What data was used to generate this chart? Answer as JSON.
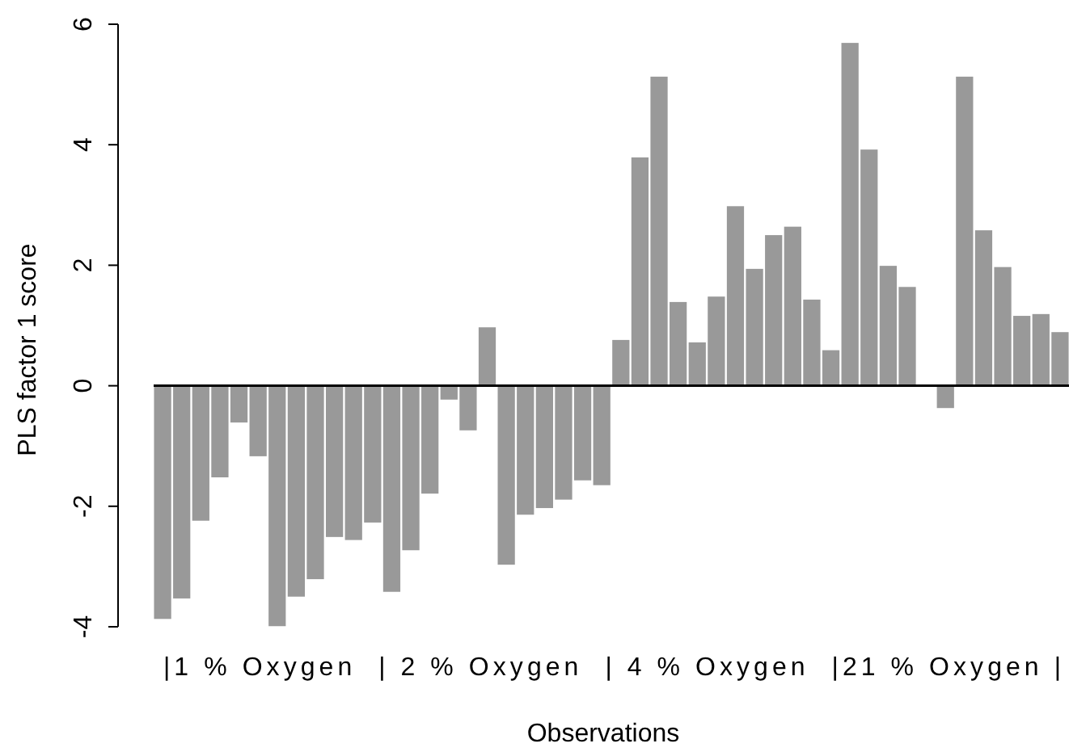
{
  "chart_data": {
    "type": "bar",
    "xlabel": "Observations",
    "ylabel": "PLS factor 1 score",
    "annotations": [
      "|1 % Oxygen  | 2 % Oxygen  | 4 % Oxygen  |21 % Oxygen |"
    ],
    "categories": [
      null,
      null,
      null,
      null,
      null,
      null,
      null,
      null,
      null,
      null,
      null,
      null,
      null,
      null,
      null,
      null,
      null,
      null,
      null,
      null,
      null,
      null,
      null,
      null,
      null,
      null,
      null,
      null,
      null,
      null,
      null,
      null,
      null,
      null,
      null,
      null,
      null,
      null,
      null,
      null,
      null,
      null,
      null,
      null,
      null,
      null,
      null,
      null
    ],
    "values": [
      -3.87,
      -3.53,
      -2.24,
      -1.52,
      -0.61,
      -1.17,
      -3.99,
      -3.5,
      -3.21,
      -2.51,
      -2.56,
      -2.27,
      -3.42,
      -2.73,
      -1.79,
      -0.23,
      -0.74,
      0.97,
      -2.97,
      -2.14,
      -2.03,
      -1.89,
      -1.57,
      -1.65,
      0.76,
      3.79,
      5.13,
      1.39,
      0.72,
      1.48,
      2.98,
      1.94,
      2.5,
      2.64,
      1.43,
      0.59,
      5.69,
      3.92,
      1.99,
      1.64,
      0,
      -0.37,
      5.13,
      2.58,
      1.97,
      1.16,
      1.19,
      0.89
    ],
    "color": "#999999",
    "ylim": [
      -4,
      6
    ],
    "yticks": [
      -4,
      -2,
      0,
      2,
      4,
      6
    ]
  }
}
